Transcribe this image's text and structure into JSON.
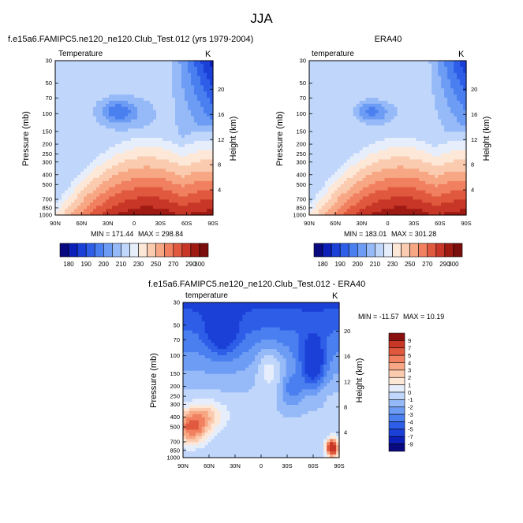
{
  "page_title": "JJA",
  "chart_data": [
    {
      "type": "heatmap",
      "title": "f.e15a6.FAMIPC5.ne120_ne120.Club_Test.012 (yrs 1979-2004)",
      "variable": "Temperature",
      "units": "K",
      "ylabel": "Pressure (mb)",
      "ylabel_right": "Height (km)",
      "x_ticks": [
        "90N",
        "60N",
        "30N",
        "0",
        "30S",
        "60S",
        "90S"
      ],
      "y_ticks": [
        "30",
        "50",
        "70",
        "100",
        "150",
        "200",
        "250",
        "300",
        "400",
        "500",
        "700",
        "850",
        "1000"
      ],
      "y_ticks_right": [
        "20",
        "16",
        "12",
        "8",
        "4"
      ],
      "min_label": "MIN = 171.44",
      "max_label": "MAX = 298.84",
      "min": 171.44,
      "max": 298.84,
      "colorbar_ticks": [
        "180",
        "190",
        "200",
        "210",
        "230",
        "250",
        "270",
        "290",
        "300"
      ]
    },
    {
      "type": "heatmap",
      "title": "ERA40",
      "variable": "temperature",
      "units": "K",
      "ylabel": "Pressure (mb)",
      "ylabel_right": "Height (km)",
      "x_ticks": [
        "90N",
        "60N",
        "30N",
        "0",
        "30S",
        "60S",
        "90S"
      ],
      "y_ticks": [
        "30",
        "50",
        "70",
        "100",
        "150",
        "200",
        "250",
        "300",
        "400",
        "500",
        "700",
        "850",
        "1000"
      ],
      "y_ticks_right": [
        "20",
        "16",
        "12",
        "8",
        "4"
      ],
      "min_label": "MIN = 183.01",
      "max_label": "MAX = 301.28",
      "min": 183.01,
      "max": 301.28,
      "colorbar_ticks": [
        "180",
        "190",
        "200",
        "210",
        "230",
        "250",
        "270",
        "290",
        "300"
      ]
    },
    {
      "type": "heatmap",
      "title": "f.e15a6.FAMIPC5.ne120_ne120.Club_Test.012 - ERA40",
      "variable": "temperature",
      "units": "K",
      "ylabel": "Pressure (mb)",
      "ylabel_right": "Height (km)",
      "x_ticks": [
        "90N",
        "60N",
        "30N",
        "0",
        "30S",
        "60S",
        "90S"
      ],
      "y_ticks": [
        "30",
        "50",
        "70",
        "100",
        "150",
        "200",
        "250",
        "300",
        "400",
        "500",
        "700",
        "850",
        "1000"
      ],
      "y_ticks_right": [
        "20",
        "16",
        "12",
        "8",
        "4"
      ],
      "min_label": "MIN = -11.57",
      "max_label": "MAX =  10.19",
      "min": -11.57,
      "max": 10.19,
      "colorbar_ticks": [
        "9",
        "7",
        "5",
        "4",
        "3",
        "2",
        "1",
        "0",
        "-1",
        "-2",
        "-3",
        "-4",
        "-5",
        "-7",
        "-9"
      ]
    }
  ],
  "colors": {
    "abs_scale": [
      "#0a0a80",
      "#0c1fb8",
      "#1a40d8",
      "#2e5ee8",
      "#4a7ff0",
      "#6d9cf4",
      "#96baf8",
      "#c0d6fb",
      "#e6eefc",
      "#fde8d8",
      "#fbcbb0",
      "#f7a784",
      "#f08060",
      "#e0593e",
      "#c73626",
      "#a01a14",
      "#7a0e0c"
    ],
    "diff_scale": [
      "#0a0a80",
      "#0c1fb8",
      "#1a40d8",
      "#2e5ee8",
      "#4a7ff0",
      "#6d9cf4",
      "#96baf8",
      "#c0d6fb",
      "#e6eefc",
      "#fde8d8",
      "#fbcbb0",
      "#f7a784",
      "#f08060",
      "#e0593e",
      "#c73626",
      "#8a1010"
    ]
  }
}
